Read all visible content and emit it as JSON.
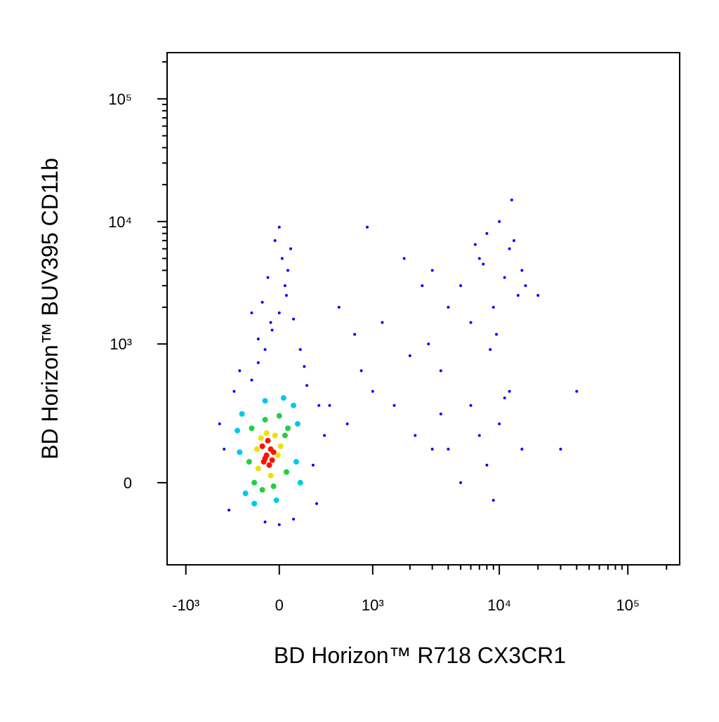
{
  "chart_data": {
    "type": "scatter",
    "x_label": "BD Horizon™ R718 CX3CR1",
    "y_label": "BD Horizon™ BUV395 CD11b",
    "xlim": [
      -1424,
      253000
    ],
    "ylim": [
      -332,
      238000
    ],
    "xticks": [
      {
        "value": -1000,
        "label": "-10³"
      },
      0,
      {
        "value": 1000,
        "label": "10³"
      },
      {
        "value": 10000,
        "label": "10⁴"
      },
      {
        "value": 100000,
        "label": "10⁵"
      }
    ],
    "yticks": [
      0,
      {
        "value": 1000,
        "label": "10³"
      },
      {
        "value": 10000,
        "label": "10⁴"
      },
      {
        "value": 100000,
        "label": "10⁵"
      }
    ],
    "xminorticks": [
      2000,
      3000,
      4000,
      5000,
      6000,
      7000,
      8000,
      9000,
      20000,
      30000,
      40000,
      50000,
      60000,
      70000,
      80000,
      90000,
      200000
    ],
    "yminorticks": [
      2000,
      3000,
      4000,
      5000,
      6000,
      7000,
      8000,
      9000,
      20000,
      30000,
      40000,
      50000,
      60000,
      70000,
      80000,
      90000,
      200000
    ],
    "series": [
      {
        "color": "#0000ff",
        "x": [
          -450,
          250,
          -350,
          300,
          -200,
          200,
          -400,
          350,
          -100,
          0,
          -500,
          280,
          -300,
          180,
          -150,
          100,
          -100,
          -50,
          0,
          50,
          -150,
          100,
          -80,
          20,
          -30,
          60,
          -120,
          150,
          -60,
          0,
          40,
          -200,
          80,
          5000,
          7000,
          9000,
          12000,
          15000,
          8000,
          6000,
          11000,
          14000,
          10000,
          7500,
          13000,
          4000,
          9500,
          16000,
          6500,
          12500,
          20000,
          8500,
          3000,
          600,
          800,
          1200,
          1500,
          2000,
          2500,
          3000,
          1800,
          1000,
          700,
          2200,
          3500,
          500,
          900,
          400,
          2800,
          4000,
          6000,
          8000,
          10000,
          12000,
          5000,
          7000,
          15000,
          3500,
          9000,
          11000,
          30000,
          40000
        ],
        "y": [
          100,
          50,
          400,
          300,
          500,
          450,
          -80,
          150,
          -120,
          -130,
          200,
          -60,
          600,
          650,
          700,
          -110,
          900,
          1300,
          1800,
          2500,
          1100,
          1600,
          3500,
          5000,
          7000,
          4000,
          2200,
          900,
          1500,
          9000,
          3000,
          1800,
          6000,
          3000,
          5000,
          2000,
          6000,
          4000,
          8000,
          1500,
          3500,
          2500,
          10000,
          4500,
          7000,
          2000,
          1200,
          3000,
          6500,
          15000,
          2500,
          900,
          4000,
          200,
          600,
          1500,
          300,
          800,
          3000,
          100,
          5000,
          400,
          1200,
          150,
          600,
          2000,
          9000,
          300,
          1000,
          100,
          300,
          50,
          200,
          400,
          0,
          150,
          100,
          250,
          -50,
          350,
          100,
          400
        ]
      },
      {
        "color": "#00c8f0",
        "x": [
          -300,
          120,
          -100,
          -280,
          130,
          -20,
          -250,
          100,
          -180,
          30,
          -320,
          150
        ],
        "y": [
          90,
          60,
          330,
          250,
          200,
          -50,
          -30,
          300,
          -60,
          350,
          170,
          0
        ]
      },
      {
        "color": "#20d040",
        "x": [
          -220,
          50,
          -100,
          -200,
          40,
          -40,
          -180,
          60,
          -120,
          0
        ],
        "y": [
          60,
          30,
          220,
          180,
          150,
          -10,
          0,
          180,
          -20,
          240
        ]
      },
      {
        "color": "#f0e000",
        "x": [
          -150,
          -10,
          -90,
          -30,
          -160,
          -60,
          -130,
          10
        ],
        "y": [
          40,
          80,
          160,
          150,
          100,
          20,
          140,
          110
        ]
      },
      {
        "color": "#ff1000",
        "x": [
          -90,
          -60,
          -110,
          -70,
          -40,
          -120,
          -80,
          -100,
          -50
        ],
        "y": [
          80,
          100,
          60,
          50,
          90,
          110,
          130,
          70,
          65
        ]
      }
    ]
  }
}
